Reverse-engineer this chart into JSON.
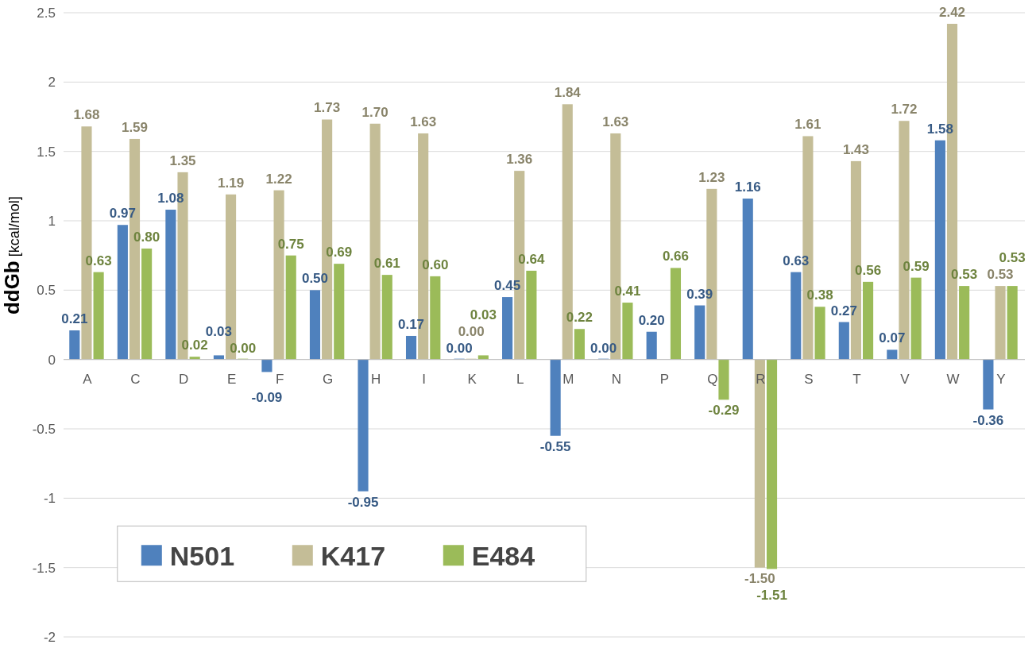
{
  "chart_data": {
    "type": "bar",
    "ylabel": "ddGb [kcal/mol]",
    "categories": [
      "A",
      "C",
      "D",
      "E",
      "F",
      "G",
      "H",
      "I",
      "K",
      "L",
      "M",
      "N",
      "P",
      "Q",
      "R",
      "S",
      "T",
      "V",
      "W",
      "Y"
    ],
    "series": [
      {
        "name": "N501",
        "color": "#4f81bd",
        "values": [
          0.21,
          0.97,
          1.08,
          0.03,
          -0.09,
          0.5,
          -0.95,
          0.17,
          0.0,
          0.45,
          -0.55,
          0.0,
          0.2,
          0.39,
          1.16,
          0.63,
          0.27,
          0.07,
          1.58,
          -0.36
        ],
        "value_labels": [
          "0.21",
          "0.97",
          "1.08",
          "0.03",
          "-0.09",
          "0.50",
          "-0.95",
          "0.17",
          "0.00",
          "0.45",
          "-0.55",
          "0.00",
          "0.20",
          "0.39",
          "1.16",
          "0.63",
          "0.27",
          "0.07",
          "1.58",
          "-0.36"
        ]
      },
      {
        "name": "K417",
        "color": "#c4bd97",
        "values": [
          1.68,
          1.59,
          1.35,
          1.19,
          1.22,
          1.73,
          1.7,
          1.63,
          0.0,
          1.36,
          1.84,
          1.63,
          null,
          1.23,
          -1.5,
          1.61,
          1.43,
          1.72,
          2.42,
          0.53
        ],
        "value_labels": [
          "1.68",
          "1.59",
          "1.35",
          "1.19",
          "1.22",
          "1.73",
          "1.70",
          "1.63",
          "0.00",
          "1.36",
          "1.84",
          "1.63",
          null,
          "1.23",
          "-1.50",
          "1.61",
          "1.43",
          "1.72",
          "2.42",
          "0.53"
        ]
      },
      {
        "name": "E484",
        "color": "#9bbb59",
        "values": [
          0.63,
          0.8,
          0.02,
          0.0,
          0.75,
          0.69,
          0.61,
          0.6,
          0.03,
          0.64,
          0.22,
          0.41,
          0.66,
          -0.29,
          -1.51,
          0.38,
          0.56,
          0.59,
          0.53,
          0.53
        ],
        "value_labels": [
          "0.63",
          "0.80",
          "0.02",
          "0.00",
          "0.75",
          "0.69",
          "0.61",
          "0.60",
          "0.03",
          "0.64",
          "0.22",
          "0.41",
          "0.66",
          "-0.29",
          "-1.51",
          "0.38",
          "0.56",
          "0.59",
          "0.53",
          "0.53"
        ]
      }
    ],
    "ylim": [
      -2,
      2.5
    ],
    "yticks": [
      -2,
      -1.5,
      -1,
      -0.5,
      0,
      0.5,
      1,
      1.5,
      2,
      2.5
    ],
    "grid": "y",
    "legend": "bottom left"
  }
}
